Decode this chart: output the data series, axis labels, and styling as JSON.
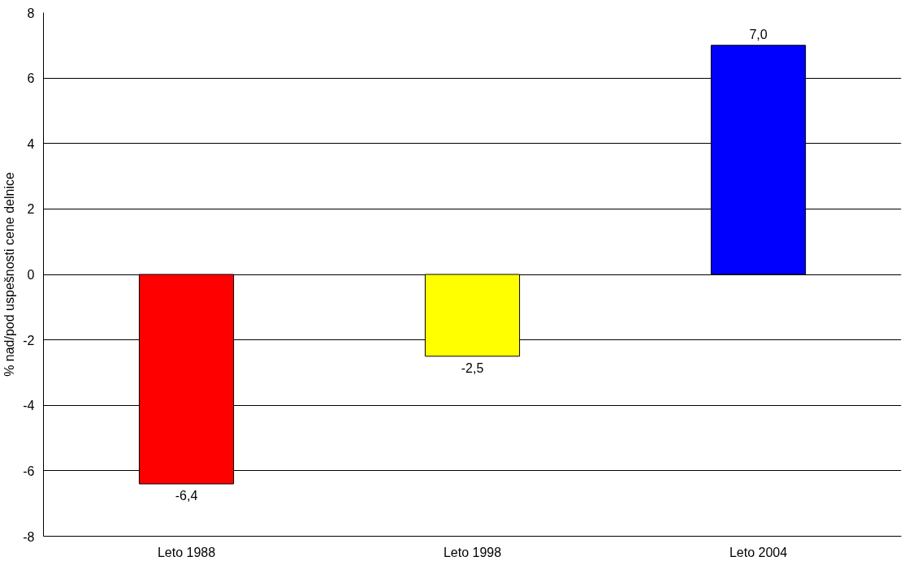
{
  "chart_data": {
    "type": "bar",
    "ylabel": "% nad/pod uspešnosti cene delnice",
    "categories": [
      "Leto 1988",
      "Leto 1998",
      "Leto 2004"
    ],
    "values": [
      -6.4,
      -2.5,
      7.0
    ],
    "colors": [
      "#ff0000",
      "#ffff00",
      "#0000ff"
    ],
    "value_labels": [
      "-6,4",
      "-2,5",
      "7,0"
    ],
    "ylim": [
      -8,
      8
    ],
    "yticks": [
      -8,
      -6,
      -4,
      -2,
      0,
      2,
      4,
      6,
      8
    ],
    "grid": "y"
  }
}
